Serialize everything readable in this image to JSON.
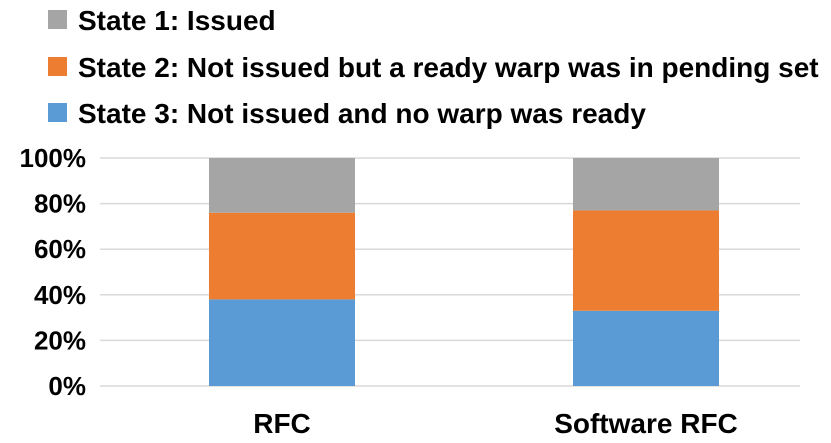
{
  "chart_data": {
    "type": "bar",
    "stacked": true,
    "normalized": true,
    "categories": [
      "RFC",
      "Software RFC"
    ],
    "series": [
      {
        "name": "State 3: Not issued and no warp was ready",
        "values": [
          38,
          33
        ],
        "color": "#5b9bd5"
      },
      {
        "name": "State 2: Not issued but a ready warp was in pending set",
        "values": [
          38,
          44
        ],
        "color": "#ed7d31"
      },
      {
        "name": "State 1: Issued",
        "values": [
          24,
          23
        ],
        "color": "#a5a5a5"
      }
    ],
    "legend_order": [
      "State 1: Issued",
      "State 2: Not issued but a ready warp was in pending set",
      "State 3: Not issued and no warp was ready"
    ],
    "yticks": [
      "0%",
      "20%",
      "40%",
      "60%",
      "80%",
      "100%"
    ],
    "ylim": [
      0,
      100
    ],
    "grid": true,
    "legend_position": "top-left",
    "gridline_color": "#d9d9d9"
  }
}
